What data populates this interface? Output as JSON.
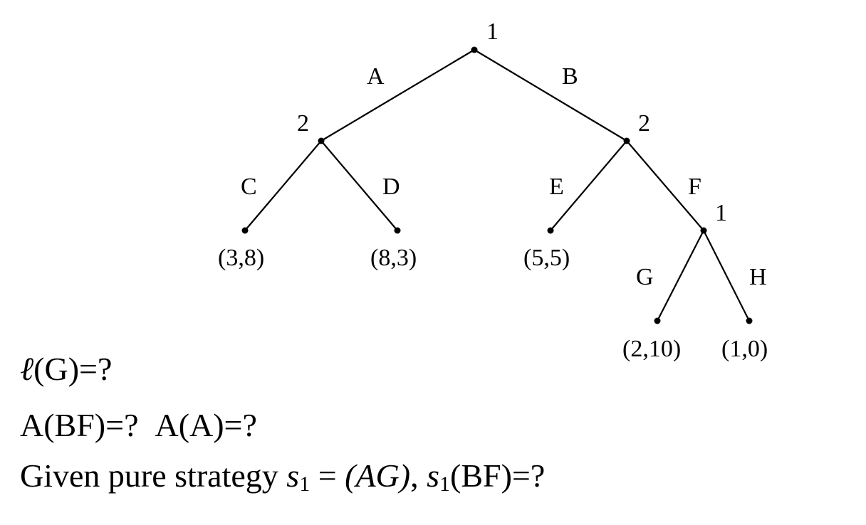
{
  "tree": {
    "nodes": {
      "root_player": "1",
      "left_player": "2",
      "right_player": "2",
      "sub_player": "1"
    },
    "edges": {
      "A": "A",
      "B": "B",
      "C": "C",
      "D": "D",
      "E": "E",
      "F": "F",
      "G": "G",
      "H": "H"
    },
    "payoffs": {
      "C": "(3,8)",
      "D": "(8,3)",
      "E": "(5,5)",
      "G": "(2,10)",
      "H": "(1,0)"
    }
  },
  "questions": {
    "q1": {
      "func": "ℓ",
      "open": "(G)=?"
    },
    "q2": {
      "part1": "A(BF)=?",
      "part2": "A(A)=?"
    },
    "q3": {
      "prefix": "Given pure strategy ",
      "s": "s",
      "sub": "1",
      "eq": " = ",
      "strategy": "(AG)",
      "comma": ", ",
      "s2": "s",
      "sub2": "1",
      "suffix": "(BF)=?"
    }
  }
}
